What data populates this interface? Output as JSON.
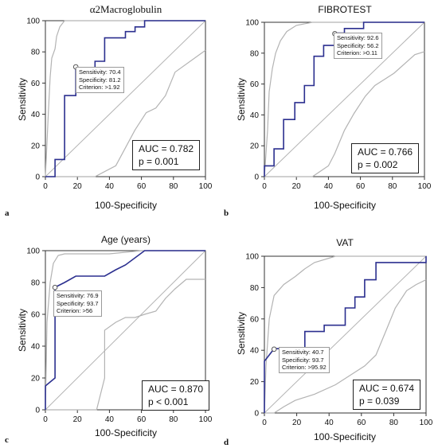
{
  "colors": {
    "roc": "#2b2f8f",
    "ci": "#b3b3b3",
    "diagonal": "#b3b3b3",
    "axis": "#333333"
  },
  "chart_data": [
    {
      "type": "line",
      "panel_letter": "a",
      "title": "α2Macroglobulin",
      "xlabel": "100-Specificity",
      "ylabel": "Sensitivity",
      "xlim": [
        0,
        100
      ],
      "ylim": [
        0,
        100
      ],
      "x_ticks": [
        0,
        20,
        40,
        60,
        80,
        100
      ],
      "y_ticks": [
        0,
        20,
        40,
        60,
        80,
        100
      ],
      "roc": [
        [
          0,
          0
        ],
        [
          6,
          0
        ],
        [
          6,
          11
        ],
        [
          12,
          11
        ],
        [
          12,
          52
        ],
        [
          19,
          52
        ],
        [
          19,
          70
        ],
        [
          31,
          70
        ],
        [
          31,
          74
        ],
        [
          37,
          74
        ],
        [
          37,
          89
        ],
        [
          50,
          89
        ],
        [
          50,
          93
        ],
        [
          56,
          93
        ],
        [
          56,
          96
        ],
        [
          62,
          96
        ],
        [
          62,
          100
        ],
        [
          100,
          100
        ]
      ],
      "ci_upper": [
        [
          0,
          0
        ],
        [
          2,
          44
        ],
        [
          3,
          64
        ],
        [
          4,
          76
        ],
        [
          6,
          82
        ],
        [
          7,
          90
        ],
        [
          9,
          96
        ],
        [
          12,
          100
        ],
        [
          100,
          100
        ]
      ],
      "ci_lower": [
        [
          0,
          0
        ],
        [
          31,
          0
        ],
        [
          44,
          7
        ],
        [
          56,
          30
        ],
        [
          63,
          41
        ],
        [
          69,
          44
        ],
        [
          75,
          52
        ],
        [
          81,
          67
        ],
        [
          100,
          81
        ]
      ],
      "criterion_point": [
        19,
        70.4
      ],
      "annotation": {
        "sensitivity": "Sensitivity: 70.4",
        "specificity": "Specificity: 81.2",
        "criterion": "Criterion: >1.92"
      },
      "auc_text": "AUC = 0.782",
      "p_text": "p = 0.001"
    },
    {
      "type": "line",
      "panel_letter": "b",
      "title": "FIBROTEST",
      "xlabel": "100-Specificity",
      "ylabel": "Sensitivity",
      "xlim": [
        0,
        100
      ],
      "ylim": [
        0,
        100
      ],
      "x_ticks": [
        0,
        20,
        40,
        60,
        80,
        100
      ],
      "y_ticks": [
        0,
        20,
        40,
        60,
        80,
        100
      ],
      "roc": [
        [
          0,
          0
        ],
        [
          0,
          7
        ],
        [
          6,
          7
        ],
        [
          6,
          18
        ],
        [
          12,
          18
        ],
        [
          12,
          37
        ],
        [
          19,
          37
        ],
        [
          19,
          48
        ],
        [
          25,
          48
        ],
        [
          25,
          59
        ],
        [
          31,
          59
        ],
        [
          31,
          78
        ],
        [
          37,
          78
        ],
        [
          37,
          85
        ],
        [
          44,
          85
        ],
        [
          44,
          93
        ],
        [
          50,
          93
        ],
        [
          50,
          96
        ],
        [
          62,
          96
        ],
        [
          62,
          100
        ],
        [
          100,
          100
        ]
      ],
      "ci_upper": [
        [
          0,
          0
        ],
        [
          2,
          30
        ],
        [
          3,
          55
        ],
        [
          5,
          70
        ],
        [
          7,
          80
        ],
        [
          10,
          88
        ],
        [
          14,
          94
        ],
        [
          20,
          98
        ],
        [
          30,
          100
        ],
        [
          100,
          100
        ]
      ],
      "ci_lower": [
        [
          0,
          0
        ],
        [
          30,
          0
        ],
        [
          40,
          7
        ],
        [
          44,
          15
        ],
        [
          50,
          30
        ],
        [
          56,
          41
        ],
        [
          63,
          52
        ],
        [
          69,
          59
        ],
        [
          75,
          63
        ],
        [
          81,
          67
        ],
        [
          94,
          79
        ],
        [
          100,
          81
        ]
      ],
      "criterion_point": [
        44,
        92.6
      ],
      "annotation": {
        "sensitivity": "Sensitivity: 92.6",
        "specificity": "Specificity: 56.2",
        "criterion": "Criterion: >0.11"
      },
      "auc_text": "AUC = 0.766",
      "p_text": "p = 0.002"
    },
    {
      "type": "line",
      "panel_letter": "c",
      "title": "Age (years)",
      "xlabel": "100-Specificity",
      "ylabel": "Sensitivity",
      "xlim": [
        0,
        100
      ],
      "ylim": [
        0,
        100
      ],
      "x_ticks": [
        0,
        20,
        40,
        60,
        80,
        100
      ],
      "y_ticks": [
        0,
        20,
        40,
        60,
        80,
        100
      ],
      "roc": [
        [
          0,
          0
        ],
        [
          0,
          15
        ],
        [
          6,
          20
        ],
        [
          6,
          77
        ],
        [
          12,
          80
        ],
        [
          19,
          84
        ],
        [
          37,
          84
        ],
        [
          44,
          88
        ],
        [
          50,
          91
        ],
        [
          62,
          100
        ],
        [
          100,
          100
        ]
      ],
      "ci_upper": [
        [
          0,
          0
        ],
        [
          1,
          55
        ],
        [
          3,
          80
        ],
        [
          5,
          92
        ],
        [
          8,
          97
        ],
        [
          12,
          98
        ],
        [
          40,
          98
        ],
        [
          60,
          100
        ],
        [
          100,
          100
        ]
      ],
      "ci_lower": [
        [
          0,
          0
        ],
        [
          32,
          0
        ],
        [
          37,
          20
        ],
        [
          37,
          50
        ],
        [
          44,
          55
        ],
        [
          50,
          58
        ],
        [
          56,
          58
        ],
        [
          62,
          60
        ],
        [
          69,
          62
        ],
        [
          75,
          70
        ],
        [
          81,
          76
        ],
        [
          88,
          82
        ],
        [
          100,
          82
        ]
      ],
      "criterion_point": [
        6,
        76.9
      ],
      "annotation": {
        "sensitivity": "Sensitivity: 76.9",
        "specificity": "Specificity: 93.7",
        "criterion": "Criterion: >56"
      },
      "auc_text": "AUC = 0.870",
      "p_text": "p < 0.001"
    },
    {
      "type": "line",
      "panel_letter": "d",
      "title": "VAT",
      "xlabel": "100-Specificity",
      "ylabel": "Sensitivity",
      "xlim": [
        0,
        100
      ],
      "ylim": [
        0,
        100
      ],
      "x_ticks": [
        0,
        20,
        40,
        60,
        80,
        100
      ],
      "y_ticks": [
        0,
        20,
        40,
        60,
        80,
        100
      ],
      "roc": [
        [
          0,
          0
        ],
        [
          0,
          33
        ],
        [
          6,
          41
        ],
        [
          25,
          41
        ],
        [
          25,
          52
        ],
        [
          37,
          52
        ],
        [
          37,
          56
        ],
        [
          50,
          56
        ],
        [
          50,
          67
        ],
        [
          56,
          67
        ],
        [
          56,
          74
        ],
        [
          62,
          74
        ],
        [
          62,
          85
        ],
        [
          69,
          85
        ],
        [
          69,
          96
        ],
        [
          100,
          96
        ],
        [
          100,
          100
        ]
      ],
      "ci_upper": [
        [
          0,
          0
        ],
        [
          1,
          30
        ],
        [
          3,
          60
        ],
        [
          6,
          75
        ],
        [
          12,
          82
        ],
        [
          19,
          87
        ],
        [
          25,
          92
        ],
        [
          31,
          96
        ],
        [
          44,
          100
        ],
        [
          100,
          100
        ]
      ],
      "ci_lower": [
        [
          0,
          0
        ],
        [
          6,
          0
        ],
        [
          12,
          4
        ],
        [
          19,
          8
        ],
        [
          31,
          12
        ],
        [
          44,
          18
        ],
        [
          56,
          26
        ],
        [
          62,
          30
        ],
        [
          69,
          37
        ],
        [
          75,
          52
        ],
        [
          81,
          67
        ],
        [
          88,
          78
        ],
        [
          94,
          82
        ],
        [
          100,
          85
        ]
      ],
      "criterion_point": [
        6,
        40.7
      ],
      "annotation": {
        "sensitivity": "Sensitivity: 40.7",
        "specificity": "Specificity: 93.7",
        "criterion": "Criterion: >95.92"
      },
      "auc_text": "AUC = 0.674",
      "p_text": "p = 0.039"
    }
  ]
}
